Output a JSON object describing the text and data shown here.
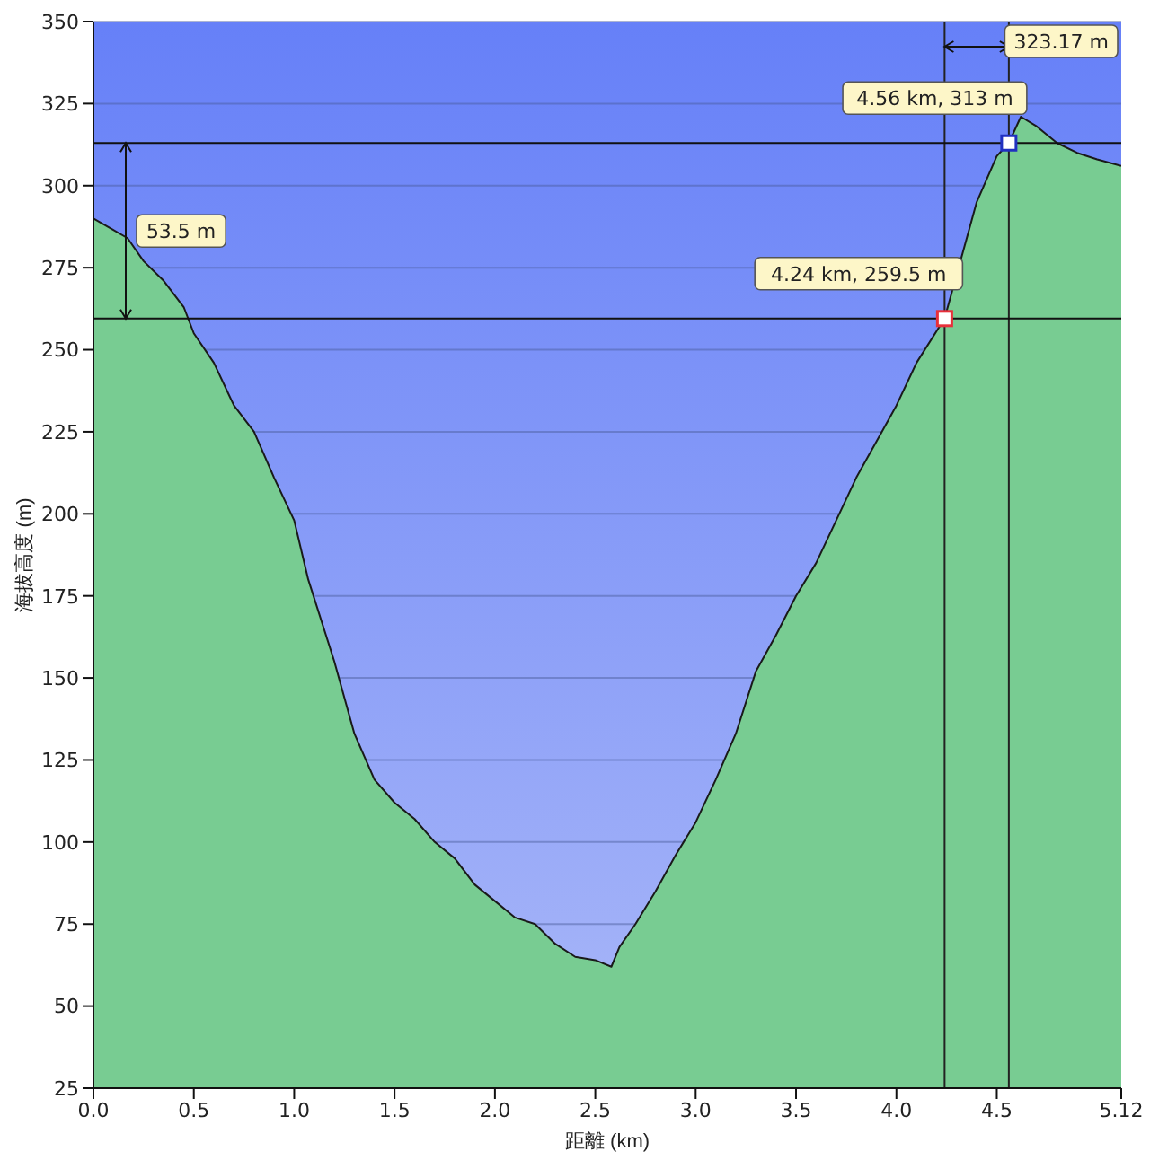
{
  "chart_data": {
    "type": "area",
    "xlabel": "距離 (km)",
    "ylabel": "海拔高度 (m)",
    "xlim": [
      0,
      5.12
    ],
    "ylim": [
      25,
      350
    ],
    "xticks": [
      {
        "value": 0,
        "label": "0.0"
      },
      0.5,
      {
        "value": 1,
        "label": "1.0"
      },
      1.5,
      {
        "value": 2,
        "label": "2.0"
      },
      2.5,
      {
        "value": 3,
        "label": "3.0"
      },
      3.5,
      {
        "value": 4,
        "label": "4.0"
      },
      4.5,
      5.12
    ],
    "yticks": [
      25,
      50,
      75,
      100,
      125,
      150,
      175,
      200,
      225,
      250,
      275,
      300,
      325,
      350
    ],
    "grid": "y",
    "series": [
      {
        "color": "#78cc92",
        "x": [
          0,
          0.17,
          0.25,
          0.35,
          0.45,
          0.5,
          0.6,
          0.7,
          0.8,
          0.9,
          1.0,
          1.07,
          1.2,
          1.3,
          1.4,
          1.5,
          1.6,
          1.7,
          1.8,
          1.9,
          2.0,
          2.1,
          2.2,
          2.3,
          2.4,
          2.5,
          2.58,
          2.62,
          2.7,
          2.8,
          2.9,
          3.0,
          3.1,
          3.2,
          3.3,
          3.4,
          3.5,
          3.6,
          3.7,
          3.8,
          3.9,
          4.0,
          4.1,
          4.24,
          4.4,
          4.5,
          4.56,
          4.62,
          4.7,
          4.8,
          4.9,
          5.0,
          5.12
        ],
        "values": [
          290,
          284,
          277,
          271,
          263,
          255,
          246,
          233,
          225,
          211,
          198,
          180,
          155,
          133,
          119,
          112,
          107,
          100,
          95,
          87,
          82,
          77,
          75,
          69,
          65,
          64,
          62,
          68,
          75,
          85,
          96,
          106,
          119,
          133,
          152,
          163,
          175,
          185,
          198,
          211,
          222,
          233,
          246,
          259.5,
          295,
          309,
          313,
          321,
          318,
          313,
          310,
          308,
          306
        ]
      },
      {
        "type": "scatter",
        "marker": "square",
        "color": "#e8303a",
        "x": [
          4.24
        ],
        "values": [
          259.5
        ]
      },
      {
        "type": "scatter",
        "marker": "square",
        "color": "#2030c0",
        "x": [
          4.56
        ],
        "values": [
          313
        ]
      }
    ],
    "ref_lines": [
      {
        "axis": "x",
        "value": 4.24,
        "color": "#222222"
      },
      {
        "axis": "x",
        "value": 4.56,
        "color": "#222222"
      },
      {
        "axis": "y",
        "value": 259.5,
        "color": "#111111"
      },
      {
        "axis": "y",
        "value": 313,
        "color": "#111111"
      }
    ],
    "annotations": [
      "53.5 m",
      "323.17 m",
      {
        "text": "4.56 km, 313 m",
        "x": 4.56,
        "y": 313
      },
      {
        "text": "4.24 km, 259.5 m",
        "x": 4.24,
        "y": 259.5
      }
    ]
  }
}
